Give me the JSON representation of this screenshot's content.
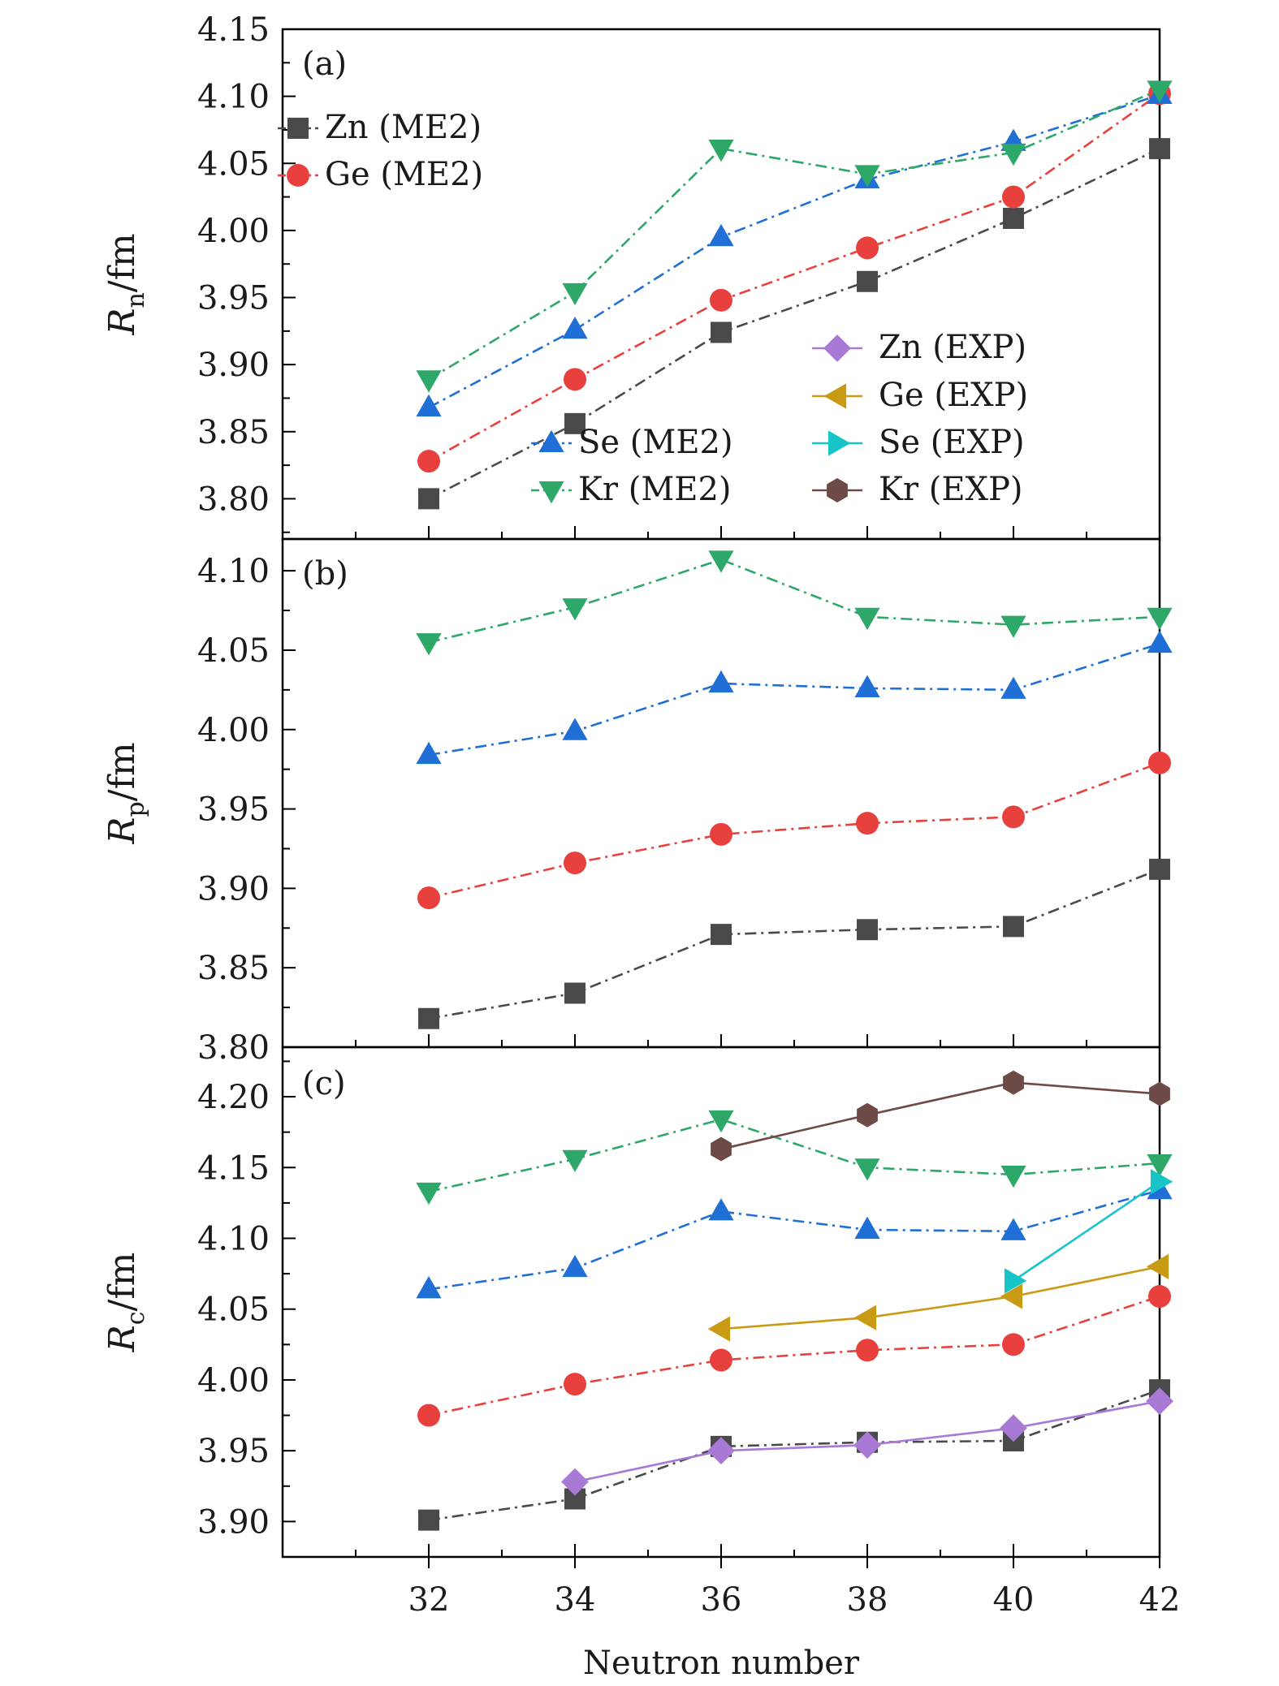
{
  "chart_data": {
    "type": "line",
    "xlabel": "Neutron number",
    "xticks": [
      32,
      34,
      36,
      38,
      40,
      42
    ],
    "xlim": [
      30,
      42
    ],
    "series_style": {
      "Zn (ME2)": {
        "color": "#4a4a4a",
        "marker": "square",
        "dash": "dashdot"
      },
      "Ge (ME2)": {
        "color": "#e8403c",
        "marker": "circle",
        "dash": "dashdot"
      },
      "Se (ME2)": {
        "color": "#1f6fd6",
        "marker": "triangle-up",
        "dash": "dashdot"
      },
      "Kr (ME2)": {
        "color": "#2ea868",
        "marker": "triangle-down",
        "dash": "dashdot"
      },
      "Zn (EXP)": {
        "color": "#a979d6",
        "marker": "diamond",
        "dash": "solid"
      },
      "Ge (EXP)": {
        "color": "#c99a14",
        "marker": "triangle-left",
        "dash": "solid"
      },
      "Se (EXP)": {
        "color": "#17c4c8",
        "marker": "triangle-right",
        "dash": "solid"
      },
      "Kr (EXP)": {
        "color": "#6e4a46",
        "marker": "hexagon",
        "dash": "solid"
      }
    },
    "panels": [
      {
        "label": "(a)",
        "ylabel_main": "R",
        "ylabel_sub": "n",
        "ylabel_unit": "/fm",
        "ylim": [
          3.77,
          4.15
        ],
        "yticks": [
          "3.80",
          "3.85",
          "3.90",
          "3.95",
          "4.00",
          "4.05",
          "4.10",
          "4.15"
        ],
        "series": [
          {
            "name": "Zn (ME2)",
            "x": [
              32,
              34,
              36,
              38,
              40,
              42
            ],
            "values": [
              3.8,
              3.856,
              3.924,
              3.962,
              4.009,
              4.061
            ]
          },
          {
            "name": "Ge (ME2)",
            "x": [
              32,
              34,
              36,
              38,
              40,
              42
            ],
            "values": [
              3.828,
              3.889,
              3.948,
              3.987,
              4.025,
              4.102
            ]
          },
          {
            "name": "Se (ME2)",
            "x": [
              32,
              34,
              36,
              38,
              40,
              42
            ],
            "values": [
              3.868,
              3.926,
              3.995,
              4.038,
              4.066,
              4.101
            ]
          },
          {
            "name": "Kr (ME2)",
            "x": [
              32,
              34,
              36,
              38,
              40,
              42
            ],
            "values": [
              3.889,
              3.954,
              4.061,
              4.042,
              4.058,
              4.105
            ]
          }
        ],
        "legend_entries": [
          "Zn (ME2)",
          "Ge (ME2)",
          "Se (ME2)",
          "Kr (ME2)",
          "Zn (EXP)",
          "Ge (EXP)",
          "Se (EXP)",
          "Kr (EXP)"
        ]
      },
      {
        "label": "(b)",
        "ylabel_main": "R",
        "ylabel_sub": "p",
        "ylabel_unit": "/fm",
        "ylim": [
          3.8,
          4.12
        ],
        "yticks": [
          "3.80",
          "3.85",
          "3.90",
          "3.95",
          "4.00",
          "4.05",
          "4.10"
        ],
        "series": [
          {
            "name": "Zn (ME2)",
            "x": [
              32,
              34,
              36,
              38,
              40,
              42
            ],
            "values": [
              3.818,
              3.834,
              3.871,
              3.874,
              3.876,
              3.912
            ]
          },
          {
            "name": "Ge (ME2)",
            "x": [
              32,
              34,
              36,
              38,
              40,
              42
            ],
            "values": [
              3.894,
              3.916,
              3.934,
              3.941,
              3.945,
              3.979
            ]
          },
          {
            "name": "Se (ME2)",
            "x": [
              32,
              34,
              36,
              38,
              40,
              42
            ],
            "values": [
              3.984,
              3.999,
              4.029,
              4.026,
              4.025,
              4.054
            ]
          },
          {
            "name": "Kr (ME2)",
            "x": [
              32,
              34,
              36,
              38,
              40,
              42
            ],
            "values": [
              4.055,
              4.077,
              4.107,
              4.071,
              4.066,
              4.071
            ]
          }
        ]
      },
      {
        "label": "(c)",
        "ylabel_main": "R",
        "ylabel_sub": "c",
        "ylabel_unit": "/fm",
        "ylim": [
          3.875,
          4.235
        ],
        "yticks": [
          "3.90",
          "3.95",
          "4.00",
          "4.05",
          "4.10",
          "4.15",
          "4.20"
        ],
        "series": [
          {
            "name": "Zn (ME2)",
            "x": [
              32,
              34,
              36,
              38,
              40,
              42
            ],
            "values": [
              3.901,
              3.916,
              3.953,
              3.956,
              3.957,
              3.993
            ]
          },
          {
            "name": "Ge (ME2)",
            "x": [
              32,
              34,
              36,
              38,
              40,
              42
            ],
            "values": [
              3.975,
              3.997,
              4.014,
              4.021,
              4.025,
              4.059
            ]
          },
          {
            "name": "Se (ME2)",
            "x": [
              32,
              34,
              36,
              38,
              40,
              42
            ],
            "values": [
              4.064,
              4.079,
              4.119,
              4.106,
              4.105,
              4.134
            ]
          },
          {
            "name": "Kr (ME2)",
            "x": [
              32,
              34,
              36,
              38,
              40,
              42
            ],
            "values": [
              4.133,
              4.156,
              4.184,
              4.15,
              4.145,
              4.153
            ]
          },
          {
            "name": "Zn (EXP)",
            "x": [
              34,
              36,
              38,
              40,
              42
            ],
            "values": [
              3.928,
              3.95,
              3.954,
              3.966,
              3.985
            ]
          },
          {
            "name": "Ge (EXP)",
            "x": [
              36,
              38,
              40,
              42
            ],
            "values": [
              4.036,
              4.044,
              4.059,
              4.08
            ]
          },
          {
            "name": "Se (EXP)",
            "x": [
              40,
              42
            ],
            "values": [
              4.07,
              4.14
            ]
          },
          {
            "name": "Kr (EXP)",
            "x": [
              36,
              38,
              40,
              42
            ],
            "values": [
              4.163,
              4.187,
              4.21,
              4.202
            ]
          }
        ]
      }
    ]
  }
}
